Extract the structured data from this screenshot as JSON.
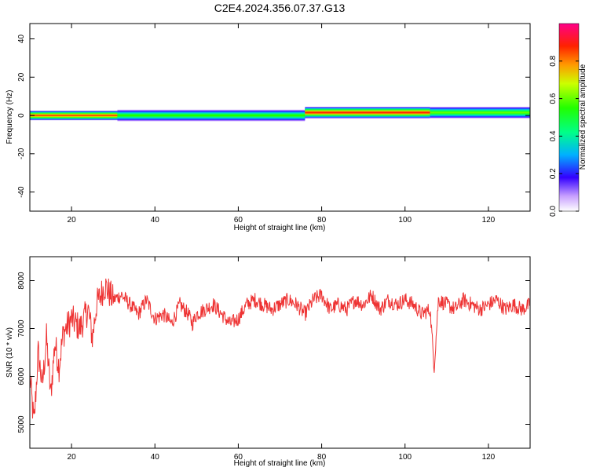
{
  "figure": {
    "title": "C2E4.2024.356.07.37.G13"
  },
  "colorbar": {
    "label": "Normalized spectral amplitude",
    "range": [
      0.0,
      1.0
    ],
    "ticks": [
      0.0,
      0.2,
      0.4,
      0.6,
      0.8
    ],
    "tick_labels": [
      "0.0",
      "0.2",
      "0.4",
      "0.6",
      "0.8"
    ]
  },
  "chart_data": [
    {
      "type": "heatmap",
      "name": "spectrogram",
      "xlabel": "Height of straight line (km)",
      "ylabel": "Frequency (Hz)",
      "xlim": [
        10,
        130
      ],
      "ylim": [
        -50,
        48
      ],
      "x_ticks": [
        20,
        40,
        60,
        80,
        100,
        120
      ],
      "y_ticks": [
        -40,
        -20,
        0,
        20,
        40
      ],
      "y_tick_labels": [
        "-40",
        "-20",
        "0",
        "20",
        "40"
      ],
      "bands": [
        {
          "x": [
            10,
            31
          ],
          "center_hz": 0,
          "half_width_hz": 2.5,
          "peak": 0.85
        },
        {
          "x": [
            31,
            76
          ],
          "center_hz": 0,
          "half_width_hz": 3,
          "peak": 0.55
        },
        {
          "x": [
            76,
            106
          ],
          "center_hz": 1.5,
          "half_width_hz": 3,
          "peak": 0.88
        },
        {
          "x": [
            106,
            130
          ],
          "center_hz": 1.5,
          "half_width_hz": 3,
          "peak": 0.6
        }
      ]
    },
    {
      "type": "line",
      "name": "snr",
      "xlabel": "Height of straight line (km)",
      "ylabel": "SNR (10 * v/v)",
      "xlim": [
        10,
        130
      ],
      "ylim": [
        4500,
        8500
      ],
      "x_ticks": [
        20,
        40,
        60,
        80,
        100,
        120
      ],
      "y_ticks": [
        5000,
        6000,
        7000,
        8000
      ],
      "color": "#ee3333",
      "x": [
        10,
        11,
        12,
        13,
        14,
        15,
        16,
        17,
        18,
        20,
        22,
        24,
        25,
        26,
        27,
        28,
        30,
        32,
        34,
        36,
        38,
        40,
        42,
        44,
        46,
        48,
        49,
        50,
        52,
        54,
        56,
        58,
        60,
        62,
        64,
        66,
        68,
        70,
        72,
        74,
        76,
        78,
        80,
        82,
        84,
        86,
        88,
        90,
        92,
        94,
        96,
        98,
        100,
        102,
        104,
        106,
        107,
        108,
        110,
        112,
        114,
        116,
        118,
        120,
        122,
        124,
        126,
        128,
        130
      ],
      "y": [
        6000,
        5000,
        6500,
        5800,
        6800,
        5600,
        6700,
        6200,
        6900,
        7200,
        7000,
        7400,
        6800,
        7500,
        7700,
        7900,
        7600,
        7700,
        7500,
        7300,
        7600,
        7200,
        7300,
        7100,
        7500,
        7300,
        7100,
        7300,
        7400,
        7500,
        7300,
        7100,
        7200,
        7500,
        7600,
        7500,
        7400,
        7500,
        7600,
        7500,
        7300,
        7600,
        7700,
        7400,
        7500,
        7400,
        7600,
        7500,
        7700,
        7400,
        7600,
        7500,
        7600,
        7500,
        7300,
        7400,
        6200,
        7600,
        7500,
        7400,
        7600,
        7500,
        7400,
        7500,
        7600,
        7400,
        7500,
        7400,
        7500
      ]
    }
  ]
}
